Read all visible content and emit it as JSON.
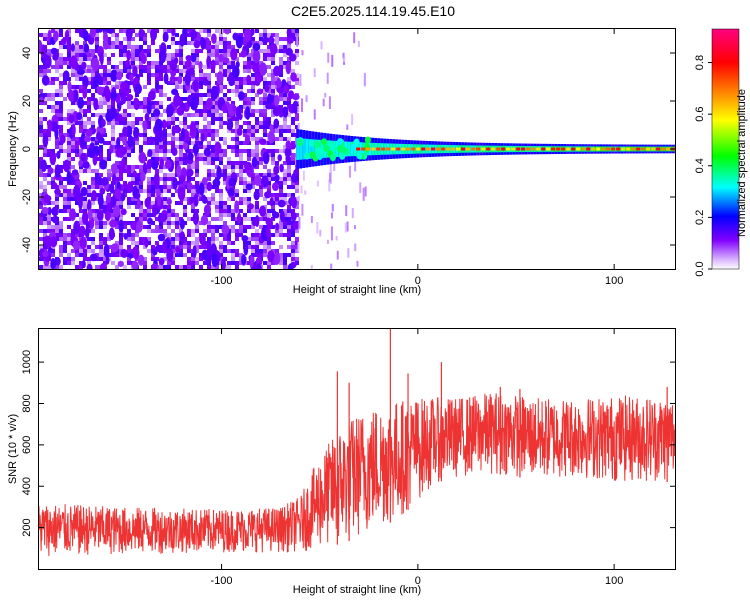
{
  "title": "C2E5.2025.114.19.45.E10",
  "chart_data": [
    {
      "type": "heatmap",
      "xlabel": "Height of straight line (km)",
      "ylabel": "Frequency (Hz)",
      "xlim": [
        -193,
        131
      ],
      "ylim": [
        -50,
        50
      ],
      "xticks": [
        -100,
        0,
        100
      ],
      "yticks": [
        -40,
        -20,
        0,
        20,
        40
      ],
      "colorbar": {
        "label": "Normalized spectral amplitude",
        "range": [
          0,
          0.93
        ],
        "ticks": [
          0.0,
          0.2,
          0.4,
          0.6,
          0.8
        ],
        "colormap": [
          "#ffffff",
          "#8000ff",
          "#0000ff",
          "#00ffff",
          "#00ff00",
          "#ffff00",
          "#ff8000",
          "#ff0000",
          "#ff0080"
        ]
      },
      "noise_floor_region_km": [
        -193,
        -62
      ],
      "signal_onset_km": -62,
      "center_frequency_hz": 0
    },
    {
      "type": "line",
      "xlabel": "Height of straight line (km)",
      "ylabel": "SNR (10 * v/v)",
      "xlim": [
        -193,
        131
      ],
      "ylim": [
        0,
        1160
      ],
      "xticks": [
        -100,
        0,
        100
      ],
      "yticks": [
        200,
        400,
        600,
        800,
        1000
      ],
      "color": "#ee3333",
      "envelope": [
        {
          "x": -193,
          "low": 60,
          "high": 320
        },
        {
          "x": -150,
          "low": 70,
          "high": 300
        },
        {
          "x": -100,
          "low": 80,
          "high": 290
        },
        {
          "x": -70,
          "low": 80,
          "high": 300
        },
        {
          "x": -60,
          "low": 80,
          "high": 350
        },
        {
          "x": -50,
          "low": 100,
          "high": 550
        },
        {
          "x": -40,
          "low": 120,
          "high": 680
        },
        {
          "x": -30,
          "low": 150,
          "high": 760
        },
        {
          "x": -20,
          "low": 200,
          "high": 800
        },
        {
          "x": -10,
          "low": 240,
          "high": 820
        },
        {
          "x": 0,
          "low": 330,
          "high": 830
        },
        {
          "x": 10,
          "low": 420,
          "high": 830
        },
        {
          "x": 20,
          "low": 440,
          "high": 830
        },
        {
          "x": 40,
          "low": 460,
          "high": 860
        },
        {
          "x": 60,
          "low": 430,
          "high": 830
        },
        {
          "x": 80,
          "low": 440,
          "high": 830
        },
        {
          "x": 100,
          "low": 420,
          "high": 840
        },
        {
          "x": 120,
          "low": 420,
          "high": 840
        },
        {
          "x": 131,
          "low": 420,
          "high": 840
        }
      ],
      "spikes": [
        {
          "x": -41,
          "y": 955
        },
        {
          "x": -35,
          "y": 900
        },
        {
          "x": -14,
          "y": 1160
        },
        {
          "x": -5,
          "y": 945
        },
        {
          "x": 12,
          "y": 1000
        },
        {
          "x": 42,
          "y": 880
        },
        {
          "x": 52,
          "y": 870
        },
        {
          "x": 127,
          "y": 880
        }
      ]
    }
  ]
}
